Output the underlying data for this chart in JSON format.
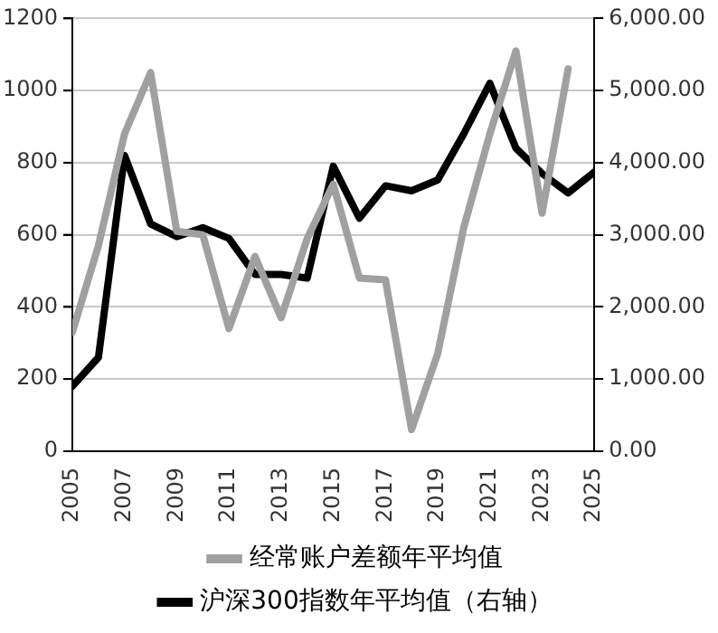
{
  "chart_data": {
    "type": "line",
    "x": [
      2005,
      2006,
      2007,
      2008,
      2009,
      2010,
      2011,
      2012,
      2013,
      2014,
      2015,
      2016,
      2017,
      2018,
      2019,
      2020,
      2021,
      2022,
      2023,
      2024,
      2025
    ],
    "series": [
      {
        "name": "经常账户差额年平均值",
        "color": "#a0a0a0",
        "values": [
          330,
          570,
          880,
          1050,
          610,
          600,
          340,
          540,
          370,
          590,
          740,
          480,
          475,
          60,
          270,
          620,
          880,
          1110,
          660,
          1060,
          null
        ]
      },
      {
        "name": "沪深300指数年平均值（右轴）",
        "color": "#000000",
        "axis": "y2",
        "values": [
          900,
          1300,
          4100,
          3150,
          2975,
          3100,
          2950,
          2450,
          2450,
          2400,
          3950,
          3230,
          3680,
          3610,
          3760,
          4400,
          5100,
          4200,
          3850,
          3580,
          3870
        ]
      }
    ],
    "xlim": [
      2005,
      2025
    ],
    "xticks": [
      2005,
      2007,
      2009,
      2011,
      2013,
      2015,
      2017,
      2019,
      2021,
      2023,
      2025
    ],
    "ylim": [
      0,
      1200
    ],
    "yticks": [
      0,
      200,
      400,
      600,
      800,
      1000,
      1200
    ],
    "y2lim": [
      0,
      6000
    ],
    "y2ticks": [
      {
        "value": 0,
        "label": "0.00"
      },
      {
        "value": 1000,
        "label": "1,000.00"
      },
      {
        "value": 2000,
        "label": "2,000.00"
      },
      {
        "value": 3000,
        "label": "3,000.00"
      },
      {
        "value": 4000,
        "label": "4,000.00"
      },
      {
        "value": 5000,
        "label": "5,000.00"
      },
      {
        "value": 6000,
        "label": "6,000.00"
      }
    ],
    "grid": "y",
    "legend": "bottom",
    "marker": "none",
    "line_style": "solid"
  }
}
